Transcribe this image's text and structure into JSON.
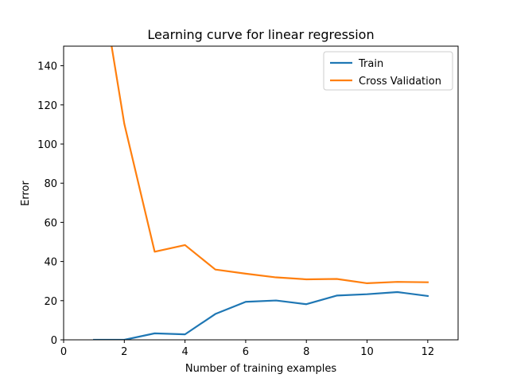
{
  "chart_data": {
    "type": "line",
    "title": "Learning curve for linear regression",
    "xlabel": "Number of training examples",
    "ylabel": "Error",
    "xlim": [
      0,
      13
    ],
    "ylim": [
      0,
      150
    ],
    "xticks": [
      0,
      2,
      4,
      6,
      8,
      10,
      12
    ],
    "yticks": [
      0,
      20,
      40,
      60,
      80,
      100,
      120,
      140
    ],
    "grid": false,
    "legend_position": "top-right",
    "series": [
      {
        "name": "Train",
        "color": "#1f77b4",
        "x": [
          1,
          2,
          3,
          4,
          5,
          6,
          7,
          8,
          9,
          10,
          11,
          12
        ],
        "y": [
          0.0,
          0.0,
          3.3,
          2.8,
          13.2,
          19.4,
          20.1,
          18.2,
          22.6,
          23.3,
          24.4,
          22.4
        ]
      },
      {
        "name": "Cross Validation",
        "color": "#ff7f0e",
        "x": [
          1,
          2,
          3,
          4,
          5,
          6,
          7,
          8,
          9,
          10,
          11,
          12
        ],
        "y": [
          205.1,
          110.3,
          45.0,
          48.4,
          35.9,
          33.8,
          31.9,
          30.9,
          31.1,
          28.9,
          29.6,
          29.4
        ]
      }
    ]
  }
}
